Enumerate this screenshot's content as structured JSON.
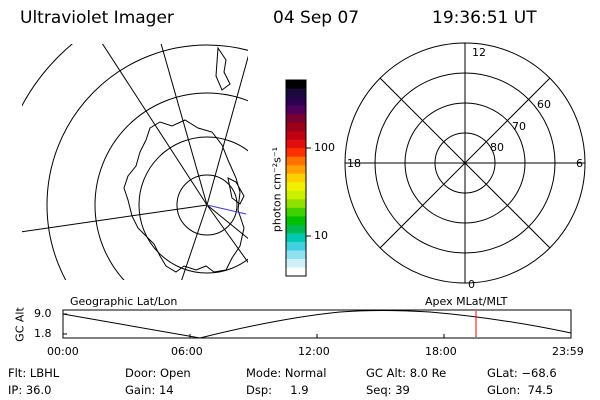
{
  "header": {
    "instrument": "Ultraviolet Imager",
    "date": "04 Sep 07",
    "time": "19:36:51 UT"
  },
  "colorbar": {
    "unit_label": "photon cm⁻²s⁻¹",
    "tick_100": "100",
    "tick_10": "10",
    "colors": [
      "#000000",
      "#1a0a3a",
      "#2a0050",
      "#50005a",
      "#7a0030",
      "#9a0018",
      "#c00010",
      "#e01010",
      "#ff3000",
      "#ff7000",
      "#ffa000",
      "#ffd000",
      "#f0f000",
      "#c8f000",
      "#90e000",
      "#40d000",
      "#00c000",
      "#00b850",
      "#00c8b0",
      "#40d0e0",
      "#90e0f0",
      "#d0f0f8",
      "#ffffff"
    ]
  },
  "polar_plot": {
    "mlt_labels": {
      "top": "12",
      "left": "18",
      "right": "6",
      "bottom": "0"
    },
    "lat_labels": [
      "60",
      "70",
      "80"
    ]
  },
  "timeline": {
    "left_title": "Geographic Lat/Lon",
    "right_title": "Apex MLat/MLT",
    "y_axis_label": "GC Alt",
    "y_ticks": [
      "9.0",
      "1.8"
    ],
    "x_ticks": [
      "00:00",
      "06:00",
      "12:00",
      "18:00",
      "23:59"
    ],
    "current_marker_color": "#ff0000"
  },
  "status": {
    "flt": "Flt: LBHL",
    "door": "Door: Open",
    "mode": "Mode: Normal",
    "gc_alt": "GC Alt: 8.0 Re",
    "glat": "GLat: −68.6",
    "ip": "IP: 36.0",
    "gain": "Gain: 14",
    "dsp": "Dsp:     1.9",
    "seq": "Seq: 39",
    "glon": "GLon:  74.5"
  }
}
